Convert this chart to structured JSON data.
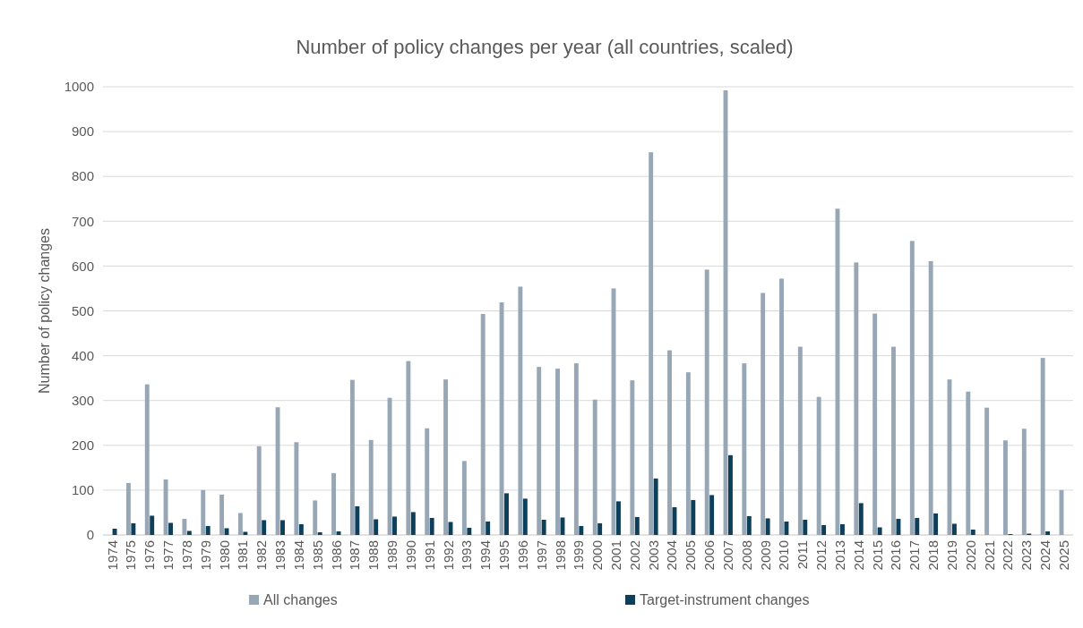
{
  "chart_data": {
    "type": "bar",
    "title": "Number of policy changes per year (all countries, scaled)",
    "ylabel": "Number of policy changes",
    "categories": [
      "1974",
      "1975",
      "1976",
      "1977",
      "1978",
      "1979",
      "1980",
      "1981",
      "1982",
      "1983",
      "1984",
      "1985",
      "1986",
      "1987",
      "1988",
      "1989",
      "1990",
      "1991",
      "1992",
      "1993",
      "1994",
      "1995",
      "1996",
      "1997",
      "1998",
      "1999",
      "2000",
      "2001",
      "2002",
      "2003",
      "2004",
      "2005",
      "2006",
      "2007",
      "2008",
      "2009",
      "2010",
      "2011",
      "2012",
      "2013",
      "2014",
      "2015",
      "2016",
      "2017",
      "2018",
      "2019",
      "2020",
      "2021",
      "2022",
      "2023",
      "2024",
      "2025"
    ],
    "series": [
      {
        "name": "All changes",
        "color": "#97a7b6",
        "values": [
          0,
          116,
          336,
          124,
          36,
          100,
          90,
          49,
          198,
          285,
          207,
          77,
          138,
          346,
          212,
          306,
          388,
          238,
          347,
          165,
          493,
          519,
          554,
          375,
          371,
          383,
          302,
          550,
          345,
          854,
          412,
          363,
          592,
          992,
          383,
          540,
          572,
          420,
          308,
          728,
          608,
          494,
          420,
          656,
          611,
          347,
          320,
          284,
          211,
          237,
          395,
          100
        ]
      },
      {
        "name": "Target-instrument changes",
        "color": "#0e3f5a",
        "values": [
          14,
          26,
          43,
          27,
          9,
          20,
          15,
          7,
          33,
          33,
          24,
          6,
          8,
          64,
          35,
          41,
          51,
          38,
          29,
          16,
          30,
          93,
          81,
          34,
          39,
          20,
          26,
          75,
          40,
          126,
          62,
          78,
          89,
          178,
          42,
          37,
          30,
          34,
          22,
          24,
          71,
          17,
          36,
          38,
          48,
          25,
          12,
          0,
          2,
          3,
          8,
          0
        ]
      }
    ],
    "ylim": [
      0,
      1000
    ],
    "yticks": [
      0,
      100,
      200,
      300,
      400,
      500,
      600,
      700,
      800,
      900,
      1000
    ],
    "grid": "y",
    "legend": "bottom"
  }
}
